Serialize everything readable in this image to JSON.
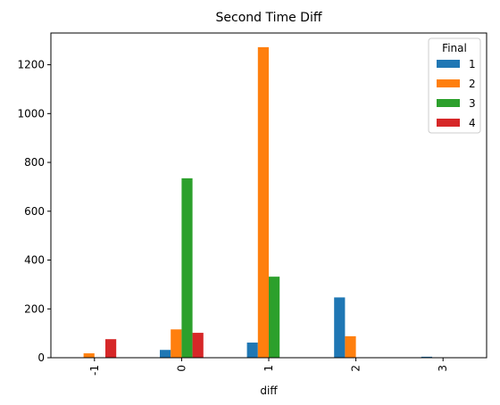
{
  "chart_data": {
    "type": "bar",
    "title": "Second Time Diff",
    "xlabel": "diff",
    "ylabel": "",
    "categories": [
      "-1",
      "0",
      "1",
      "2",
      "3"
    ],
    "ylim": [
      0,
      1330
    ],
    "yticks": [
      0,
      200,
      400,
      600,
      800,
      1000,
      1200
    ],
    "legend": {
      "title": "Final",
      "placement": "top-right"
    },
    "series": [
      {
        "name": "1",
        "color": "#1f77b4",
        "values": [
          0,
          32,
          62,
          247,
          4
        ]
      },
      {
        "name": "2",
        "color": "#ff7f0e",
        "values": [
          18,
          116,
          1272,
          88,
          0
        ]
      },
      {
        "name": "3",
        "color": "#2ca02c",
        "values": [
          0,
          735,
          332,
          0,
          0
        ]
      },
      {
        "name": "4",
        "color": "#d62728",
        "values": [
          76,
          102,
          0,
          0,
          0
        ]
      }
    ]
  }
}
